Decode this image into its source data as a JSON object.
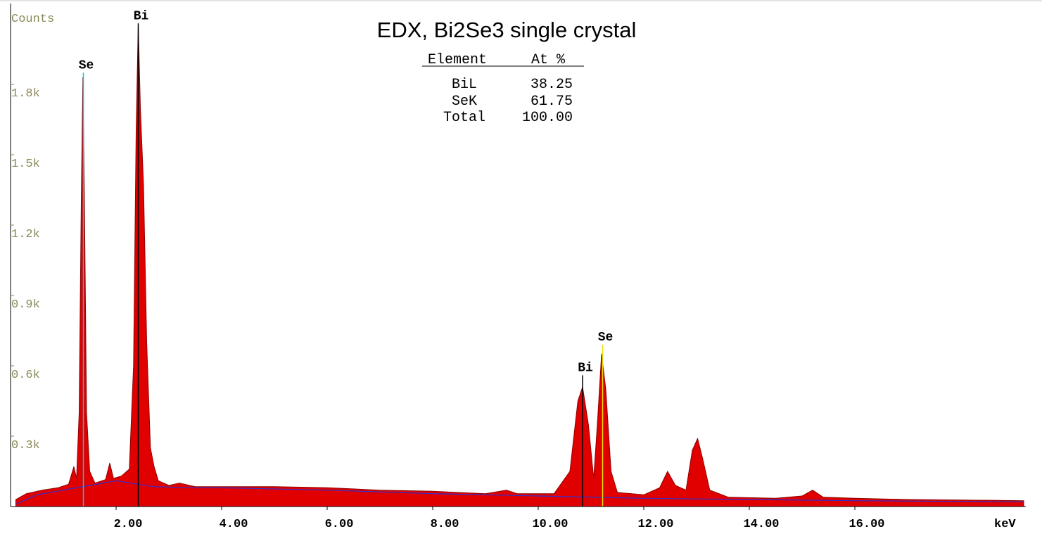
{
  "chart_data": {
    "type": "area",
    "title": "EDX, Bi2Se3 single crystal",
    "x_label": "keV",
    "y_label": "Counts",
    "xlim": [
      0,
      19.24
    ],
    "ylim": [
      0,
      2145
    ],
    "xticks": [
      {
        "value": 2,
        "label": "2.00"
      },
      {
        "value": 4,
        "label": "4.00"
      },
      {
        "value": 6,
        "label": "6.00"
      },
      {
        "value": 8,
        "label": "8.00"
      },
      {
        "value": 10,
        "label": "10.00"
      },
      {
        "value": 12,
        "label": "12.00"
      },
      {
        "value": 14,
        "label": "14.00"
      },
      {
        "value": 16,
        "label": "16.00"
      }
    ],
    "yticks": [
      {
        "value": 300,
        "label": "0.3k"
      },
      {
        "value": 600,
        "label": "0.6k"
      },
      {
        "value": 900,
        "label": "0.9k"
      },
      {
        "value": 1200,
        "label": "1.2k"
      },
      {
        "value": 1500,
        "label": "1.5k"
      },
      {
        "value": 1800,
        "label": "1.8k"
      }
    ],
    "series": [
      {
        "type": "area",
        "color": "#e00000",
        "x": [
          0.1,
          0.3,
          0.6,
          0.9,
          1.1,
          1.2,
          1.25,
          1.3,
          1.34,
          1.37,
          1.4,
          1.44,
          1.5,
          1.6,
          1.8,
          1.88,
          1.95,
          2.1,
          2.25,
          2.33,
          2.38,
          2.42,
          2.46,
          2.52,
          2.58,
          2.65,
          2.72,
          2.8,
          3.0,
          3.2,
          3.5,
          4.0,
          5.0,
          6.0,
          7.0,
          8.0,
          9.0,
          9.4,
          9.6,
          10.3,
          10.6,
          10.75,
          10.84,
          10.95,
          11.05,
          11.12,
          11.2,
          11.28,
          11.38,
          11.5,
          12.0,
          12.3,
          12.45,
          12.6,
          12.8,
          12.92,
          13.02,
          13.12,
          13.25,
          13.6,
          14.5,
          15.0,
          15.2,
          15.4,
          16.0,
          17.0,
          18.0,
          19.2
        ],
        "values": [
          30,
          55,
          70,
          80,
          95,
          170,
          120,
          400,
          1300,
          1830,
          1300,
          400,
          150,
          100,
          115,
          185,
          120,
          130,
          160,
          600,
          1600,
          2060,
          1700,
          1370,
          700,
          250,
          170,
          110,
          90,
          100,
          85,
          85,
          85,
          80,
          70,
          65,
          55,
          70,
          55,
          55,
          150,
          450,
          510,
          350,
          120,
          350,
          650,
          500,
          150,
          60,
          50,
          80,
          150,
          90,
          70,
          240,
          290,
          200,
          70,
          40,
          35,
          45,
          70,
          40,
          35,
          30,
          28,
          25
        ]
      },
      {
        "type": "line",
        "color": "#3030d0",
        "x": [
          0.1,
          0.5,
          1.0,
          2.0,
          2.7,
          3.5,
          4.0,
          6.0,
          8.0,
          10.0,
          12.0,
          14.0,
          16.0,
          19.2
        ],
        "values": [
          10,
          50,
          70,
          110,
          85,
          80,
          80,
          70,
          55,
          45,
          35,
          30,
          25,
          20
        ]
      }
    ],
    "annotations": [
      {
        "text": "Se",
        "x": 1.38,
        "y": 1850,
        "color": "#00c8e8"
      },
      {
        "text": "Bi",
        "x": 2.42,
        "y": 2060,
        "color": "#000000"
      },
      {
        "text": "Bi",
        "x": 10.84,
        "y": 560,
        "color": "#000000"
      },
      {
        "text": "Se",
        "x": 11.22,
        "y": 690,
        "color": "#e8e000"
      }
    ]
  },
  "table": {
    "columns": [
      "Element",
      "At %"
    ],
    "rows": [
      [
        "BiL",
        "38.25"
      ],
      [
        "SeK",
        "61.75"
      ],
      [
        "Total",
        "100.00"
      ]
    ]
  }
}
